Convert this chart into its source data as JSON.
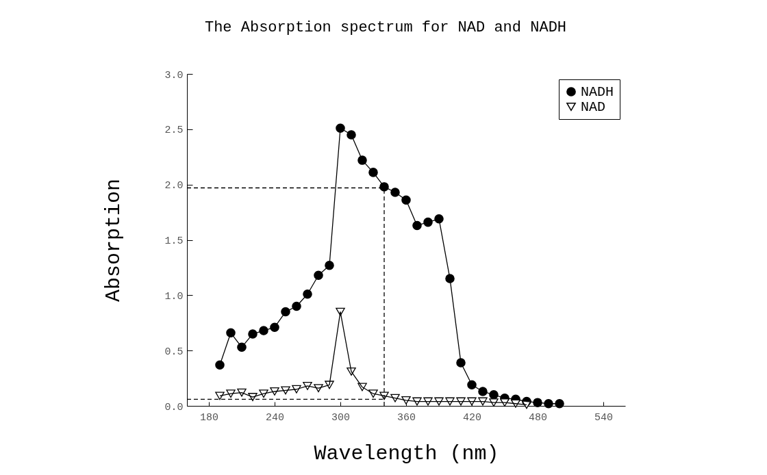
{
  "chart_data": {
    "type": "line",
    "title": "The Absorption spectrum for NAD and NADH",
    "xlabel": "Wavelength (nm)",
    "ylabel": "Absorption",
    "xlim": [
      160,
      560
    ],
    "xticks": [
      180,
      240,
      300,
      360,
      420,
      480,
      540
    ],
    "ylim": [
      0,
      3
    ],
    "yticks": [
      {
        "value": 0,
        "label": "0.0"
      },
      0.5,
      {
        "value": 1,
        "label": "1.0"
      },
      1.5,
      {
        "value": 2,
        "label": "2.0"
      },
      2.5,
      {
        "value": 3,
        "label": "3.0"
      }
    ],
    "legend": "top right",
    "grid": false,
    "series": [
      {
        "name": "NADH",
        "color": "#000000",
        "marker": "circle",
        "x": [
          190,
          200,
          210,
          220,
          230,
          240,
          250,
          260,
          270,
          280,
          290,
          300,
          310,
          320,
          330,
          340,
          350,
          360,
          370,
          380,
          390,
          400,
          410,
          420,
          430,
          440,
          450,
          460,
          470,
          480,
          490,
          500
        ],
        "values": [
          0.37,
          0.66,
          0.53,
          0.65,
          0.68,
          0.71,
          0.85,
          0.9,
          1.01,
          1.18,
          1.27,
          2.51,
          2.45,
          2.22,
          2.11,
          1.98,
          1.93,
          1.86,
          1.63,
          1.66,
          1.69,
          1.15,
          0.39,
          0.19,
          0.13,
          0.1,
          0.07,
          0.06,
          0.04,
          0.03,
          0.02,
          0.02
        ]
      },
      {
        "name": "NAD",
        "color": "#000000",
        "marker": "triangle",
        "x": [
          190,
          200,
          210,
          220,
          230,
          240,
          250,
          260,
          270,
          280,
          290,
          300,
          310,
          320,
          330,
          340,
          350,
          360,
          370,
          380,
          390,
          400,
          410,
          420,
          430,
          440,
          450,
          460,
          470
        ],
        "values": [
          0.09,
          0.11,
          0.12,
          0.08,
          0.11,
          0.13,
          0.14,
          0.15,
          0.18,
          0.16,
          0.19,
          0.85,
          0.31,
          0.17,
          0.11,
          0.09,
          0.07,
          0.05,
          0.04,
          0.04,
          0.04,
          0.04,
          0.04,
          0.04,
          0.04,
          0.03,
          0.03,
          0.02,
          0.01
        ]
      }
    ],
    "ref_lines": [
      {
        "axis": "y",
        "value": 1.97,
        "line_style": "dashed"
      },
      {
        "axis": "x",
        "value": 340,
        "line_style": "dashed"
      },
      {
        "axis": "y",
        "value": 0.06,
        "line_style": "dashed"
      }
    ]
  }
}
